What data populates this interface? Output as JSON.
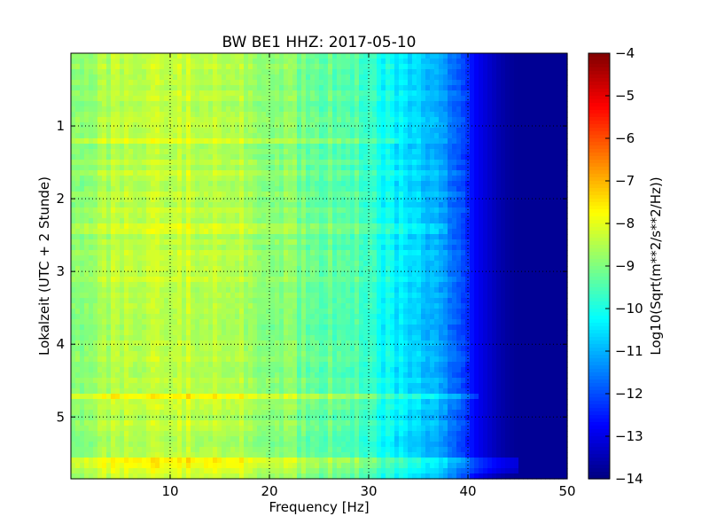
{
  "chart_data": {
    "type": "heatmap",
    "title": "BW BE1 HHZ: 2017-05-10",
    "xlabel": "Frequency [Hz]",
    "ylabel": "Lokalzeit (UTC + 2 Stunde)",
    "xlim": [
      0,
      50
    ],
    "ylim": [
      5.85,
      0
    ],
    "x_ticks": [
      10,
      20,
      30,
      40,
      50
    ],
    "y_ticks": [
      1,
      2,
      3,
      4,
      5
    ],
    "grid": true,
    "colorbar": {
      "label": "Log10(Sqrt(m**2/s**2/Hz))",
      "range": [
        -14,
        -4
      ],
      "ticks": [
        -4,
        -5,
        -6,
        -7,
        -8,
        -9,
        -10,
        -11,
        -12,
        -13,
        -14
      ],
      "colormap": "jet"
    },
    "profile": {
      "frequency_hz": [
        0,
        2,
        5,
        8,
        10,
        12,
        15,
        18,
        20,
        25,
        28,
        30,
        31,
        32,
        34,
        36,
        38,
        39,
        40,
        41,
        42,
        43,
        44,
        45,
        50
      ],
      "log10_value": [
        -9.0,
        -8.6,
        -8.4,
        -8.3,
        -8.2,
        -8.3,
        -8.4,
        -8.6,
        -8.8,
        -9.2,
        -9.4,
        -9.6,
        -10.0,
        -10.2,
        -10.6,
        -10.9,
        -11.4,
        -11.9,
        -12.4,
        -12.9,
        -13.2,
        -13.5,
        -13.7,
        -13.8,
        -13.8
      ]
    },
    "bands": [
      {
        "time_start": 4.7,
        "time_end": 4.78,
        "freq_end": 41,
        "offset": 0.6
      },
      {
        "time_start": 5.58,
        "time_end": 5.7,
        "freq_end": 45,
        "offset": 0.7
      },
      {
        "time_start": 5.72,
        "time_end": 5.8,
        "freq_end": 45,
        "offset": 0.5
      },
      {
        "time_start": 2.33,
        "time_end": 2.45,
        "freq_end": 38,
        "offset": 0.4
      },
      {
        "time_start": 1.17,
        "time_end": 1.23,
        "freq_end": 33,
        "offset": 0.3
      }
    ]
  }
}
